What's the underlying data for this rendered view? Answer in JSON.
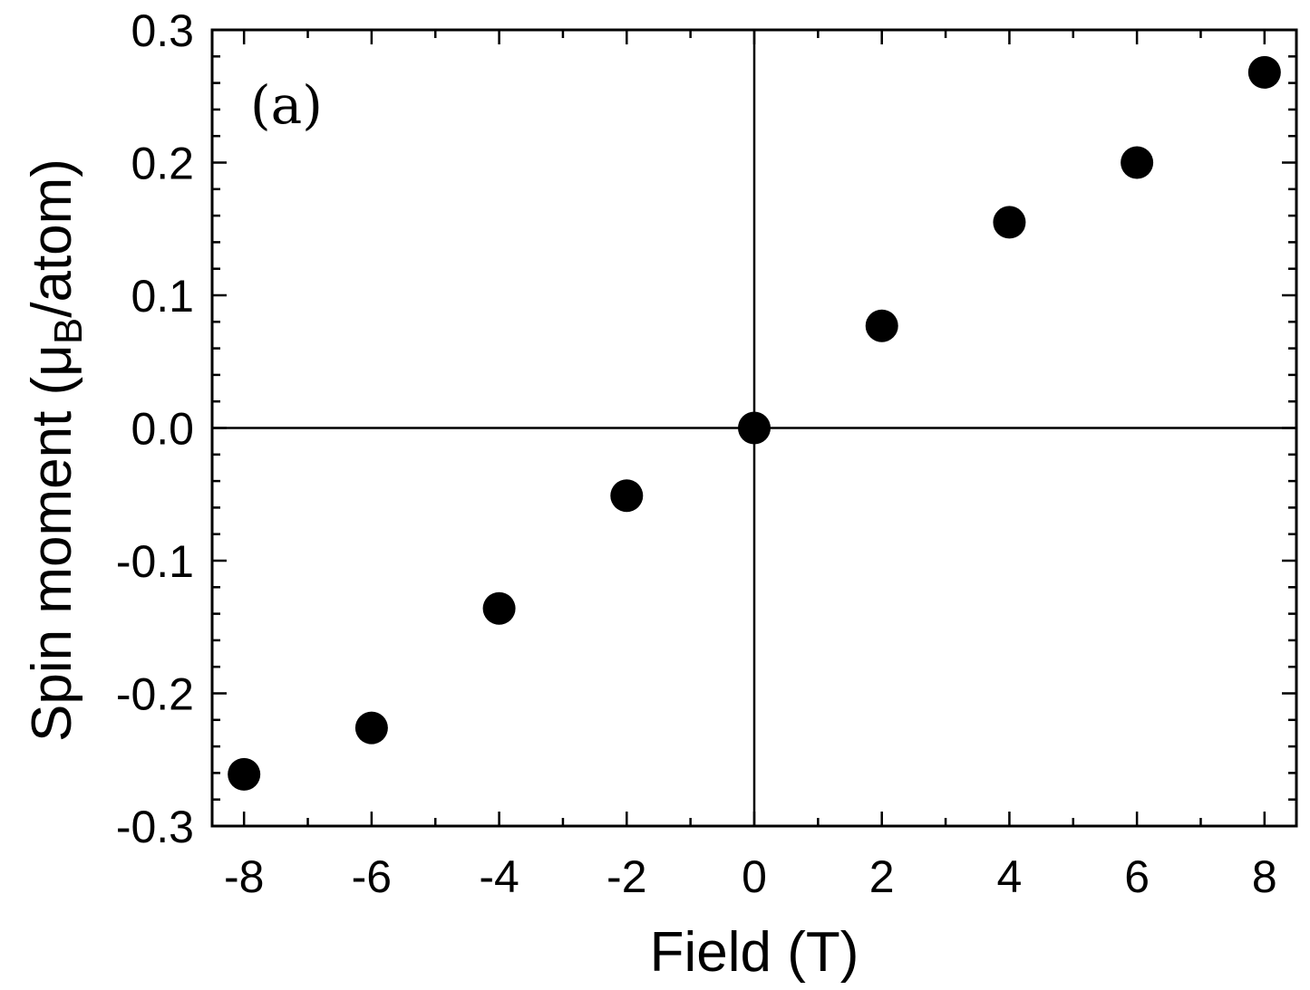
{
  "chart_data": {
    "type": "scatter",
    "panel_label": "(a)",
    "xlabel": "Field (T)",
    "ylabel_main": "Spin moment (μ",
    "ylabel_sub": "B",
    "ylabel_tail": "/atom)",
    "xlim": [
      -8.5,
      8.5
    ],
    "ylim": [
      -0.3,
      0.3
    ],
    "xticks": [
      -8,
      -6,
      -4,
      -2,
      0,
      2,
      4,
      6,
      8
    ],
    "yticks": [
      -0.3,
      -0.2,
      -0.1,
      0.0,
      0.1,
      0.2,
      0.3
    ],
    "xtick_labels": [
      "-8",
      "-6",
      "-4",
      "-2",
      "0",
      "2",
      "4",
      "6",
      "8"
    ],
    "ytick_labels": [
      "-0.3",
      "-0.2",
      "-0.1",
      "0.0",
      "0.1",
      "0.2",
      "0.3"
    ],
    "reference_lines": {
      "x": 0,
      "y": 0
    },
    "grid": false,
    "marker": "filled-circle",
    "marker_color": "#000000",
    "series": [
      {
        "x": [
          -8,
          -6,
          -4,
          -2,
          0,
          2,
          4,
          6,
          8
        ],
        "y": [
          -0.261,
          -0.226,
          -0.136,
          -0.051,
          0.0,
          0.077,
          0.155,
          0.2,
          0.268
        ]
      }
    ]
  }
}
